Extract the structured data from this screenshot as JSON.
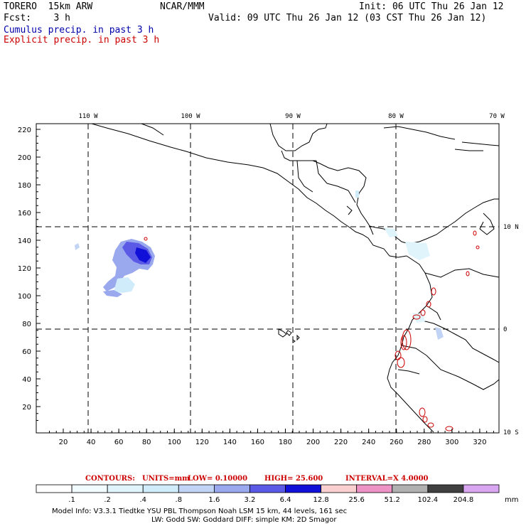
{
  "header": {
    "model": "TORERO  15km ARW",
    "org": "NCAR/MMM",
    "init": "Init: 06 UTC Thu 26 Jan 12",
    "fcst": "Fcst:    3 h",
    "valid": "Valid: 09 UTC Thu 26 Jan 12 (03 CST Thu 26 Jan 12)",
    "field1": "Cumulus precip. in past 3 h",
    "field2": "Explicit precip. in past 3 h",
    "field1_color": "#0000aa",
    "field2_color": "#cc0000"
  },
  "map": {
    "lon_labels": [
      "110 W",
      "100 W",
      "90 W",
      "80 W",
      "70 W"
    ],
    "lat_labels": [
      "10 N",
      "0",
      "10 S"
    ],
    "y_ticks": [
      "220",
      "200",
      "180",
      "160",
      "140",
      "120",
      "100",
      "80",
      "60",
      "40",
      "20"
    ],
    "x_ticks": [
      "20",
      "40",
      "60",
      "80",
      "100",
      "120",
      "140",
      "160",
      "180",
      "200",
      "220",
      "240",
      "260",
      "280",
      "300",
      "320"
    ]
  },
  "contour_info": {
    "contours": "CONTOURS:",
    "units": "UNITS=mm",
    "low": "LOW= 0.10000",
    "high": "HIGH=  25.600",
    "interval": "INTERVAL=X  4.0000"
  },
  "legend": {
    "labels": [
      ".1",
      ".2",
      ".4",
      ".8",
      "1.6",
      "3.2",
      "6.4",
      "12.8",
      "25.6",
      "51.2",
      "102.4",
      "204.8"
    ],
    "unit": "mm",
    "colors": [
      "#ffffff",
      "#f2fbff",
      "#e0f4fc",
      "#d0ecfb",
      "#c2d4f5",
      "#9aa8ee",
      "#5a5ae6",
      "#1010d8",
      "#f9cfcf",
      "#ee93c6",
      "#b0b0b0",
      "#404040",
      "#d9a6f2"
    ]
  },
  "footer": {
    "line1": "Model Info: V3.3.1    Tiedtke YSU PBL  Thompson    Noah LSM  15 km,   44 levels,  161 sec",
    "line2": "LW: Godd SW: Goddard DIFF: simple KM: 2D Smagor"
  }
}
